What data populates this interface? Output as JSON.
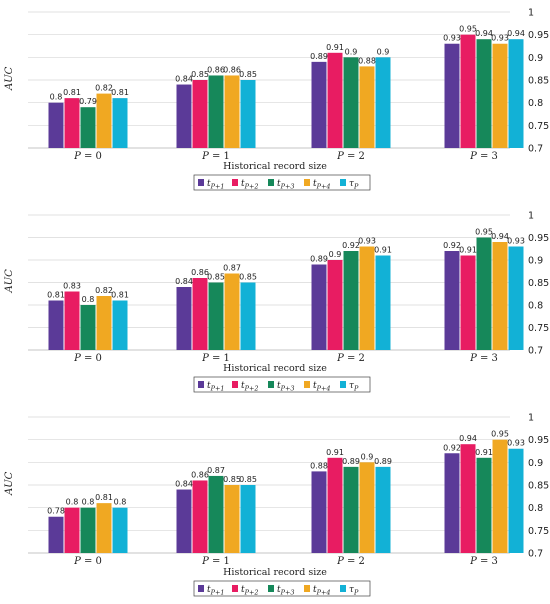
{
  "colors": {
    "t_p1": "#5b3a98",
    "t_p2": "#e81c62",
    "t_p3": "#16885a",
    "t_p4": "#f0a822",
    "tau_p": "#12b1d6",
    "grid": "#d8d8d8",
    "label_dark": "#222222"
  },
  "chart_data": [
    {
      "type": "bar",
      "categories": [
        "P = 0",
        "P = 1",
        "P = 2",
        "P = 3"
      ],
      "xlabel": "Historical record size",
      "ylabel": "AUC",
      "ylim": [
        0.7,
        1.0
      ],
      "yticks": [
        "0.7",
        "0.75",
        "0.8",
        "0.85",
        "0.9",
        "0.95",
        "1"
      ],
      "legend": [
        "t_{P+1}",
        "t_{P+2}",
        "t_{P+3}",
        "t_{P+4}",
        "τ_P"
      ],
      "legend_position": "bottom",
      "grid": true,
      "series": [
        {
          "name": "t_{P+1}",
          "values": [
            0.8,
            0.84,
            0.89,
            0.93
          ],
          "labels": [
            "0.8",
            "0.84",
            "0.89",
            "0.93"
          ]
        },
        {
          "name": "t_{P+2}",
          "values": [
            0.81,
            0.85,
            0.91,
            0.95
          ],
          "labels": [
            "0.81",
            "0.85",
            "0.91",
            "0.95"
          ]
        },
        {
          "name": "t_{P+3}",
          "values": [
            0.79,
            0.86,
            0.9,
            0.94
          ],
          "labels": [
            "0.79",
            "0.86",
            "0.9",
            "0.94"
          ]
        },
        {
          "name": "t_{P+4}",
          "values": [
            0.82,
            0.86,
            0.88,
            0.93
          ],
          "labels": [
            "0.82",
            "0.86",
            "0.88",
            "0.93"
          ]
        },
        {
          "name": "τ_P",
          "values": [
            0.81,
            0.85,
            0.9,
            0.94
          ],
          "labels": [
            "0.81",
            "0.85",
            "0.9",
            "0.94"
          ]
        }
      ]
    },
    {
      "type": "bar",
      "categories": [
        "P = 0",
        "P = 1",
        "P = 2",
        "P = 3"
      ],
      "xlabel": "Historical record size",
      "ylabel": "AUC",
      "ylim": [
        0.7,
        1.0
      ],
      "yticks": [
        "0.7",
        "0.75",
        "0.8",
        "0.85",
        "0.9",
        "0.95",
        "1"
      ],
      "legend": [
        "t_{P+1}",
        "t_{P+2}",
        "t_{P+3}",
        "t_{P+4}",
        "τ_P"
      ],
      "legend_position": "bottom",
      "grid": true,
      "series": [
        {
          "name": "t_{P+1}",
          "values": [
            0.81,
            0.84,
            0.89,
            0.92
          ],
          "labels": [
            "0.81",
            "0.84",
            "0.89",
            "0.92"
          ]
        },
        {
          "name": "t_{P+2}",
          "values": [
            0.83,
            0.86,
            0.9,
            0.91
          ],
          "labels": [
            "0.83",
            "0.86",
            "0.9",
            "0.91"
          ]
        },
        {
          "name": "t_{P+3}",
          "values": [
            0.8,
            0.85,
            0.92,
            0.95
          ],
          "labels": [
            "0.8",
            "0.85",
            "0.92",
            "0.95"
          ]
        },
        {
          "name": "t_{P+4}",
          "values": [
            0.82,
            0.87,
            0.93,
            0.94
          ],
          "labels": [
            "0.82",
            "0.87",
            "0.93",
            "0.94"
          ]
        },
        {
          "name": "τ_P",
          "values": [
            0.81,
            0.85,
            0.91,
            0.93
          ],
          "labels": [
            "0.81",
            "0.85",
            "0.91",
            "0.93"
          ]
        }
      ]
    },
    {
      "type": "bar",
      "categories": [
        "P = 0",
        "P = 1",
        "P = 2",
        "P = 3"
      ],
      "xlabel": "Historical record size",
      "ylabel": "AUC",
      "ylim": [
        0.7,
        1.0
      ],
      "yticks": [
        "0.7",
        "0.75",
        "0.8",
        "0.85",
        "0.9",
        "0.95",
        "1"
      ],
      "legend": [
        "t_{P+1}",
        "t_{P+2}",
        "t_{P+3}",
        "t_{P+4}",
        "τ_P"
      ],
      "legend_position": "bottom",
      "grid": true,
      "series": [
        {
          "name": "t_{P+1}",
          "values": [
            0.78,
            0.84,
            0.88,
            0.92
          ],
          "labels": [
            "0.78",
            "0.84",
            "0.88",
            "0.92"
          ]
        },
        {
          "name": "t_{P+2}",
          "values": [
            0.8,
            0.86,
            0.91,
            0.94
          ],
          "labels": [
            "0.8",
            "0.86",
            "0.91",
            "0.94"
          ]
        },
        {
          "name": "t_{P+3}",
          "values": [
            0.8,
            0.87,
            0.89,
            0.91
          ],
          "labels": [
            "0.8",
            "0.87",
            "0.89",
            "0.91"
          ]
        },
        {
          "name": "t_{P+4}",
          "values": [
            0.81,
            0.85,
            0.9,
            0.95
          ],
          "labels": [
            "0.81",
            "0.85",
            "0.9",
            "0.95"
          ]
        },
        {
          "name": "τ_P",
          "values": [
            0.8,
            0.85,
            0.89,
            0.93
          ],
          "labels": [
            "0.8",
            "0.85",
            "0.89",
            "0.93"
          ]
        }
      ]
    }
  ]
}
